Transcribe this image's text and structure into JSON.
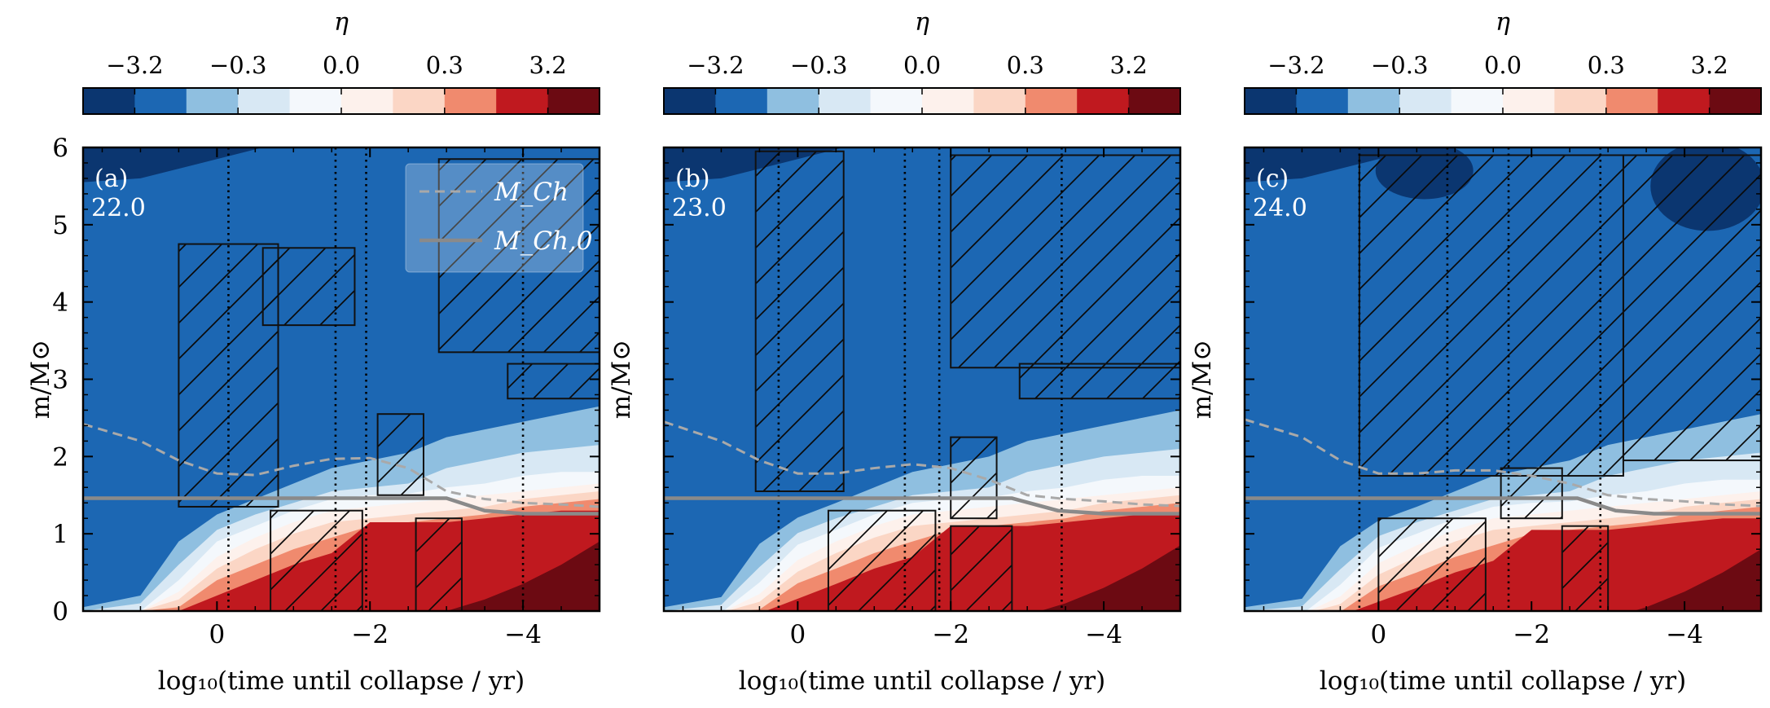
{
  "chart_data": {
    "type": "heatmap",
    "shared": {
      "colorbar": {
        "label": "η",
        "tick_labels": [
          "−3.2",
          "−0.3",
          "0.0",
          "0.3",
          "3.2"
        ],
        "levels": [
          "≤−3.2",
          "−3.2…−1.0",
          "−1.0…−0.3",
          "−0.3…−0.1",
          "−0.1…0.0",
          "0.0…0.1",
          "0.1…0.3",
          "0.3…1.0",
          "1.0…3.2",
          "≥3.2"
        ],
        "colors": [
          "#0b3670",
          "#1c67b3",
          "#8fbfe0",
          "#d8e8f4",
          "#f4f8fc",
          "#fdf1ec",
          "#fbd6c5",
          "#f08a6e",
          "#c0191f",
          "#6c0a12"
        ]
      },
      "xlabel": "log₁₀(time until collapse / yr)",
      "ylabel": "m/M⊙",
      "xlim": [
        1.75,
        -5.0
      ],
      "ylim": [
        0,
        6
      ],
      "xticks": [
        0,
        -2,
        -4
      ],
      "xtick_labels": [
        "0",
        "−2",
        "−4"
      ],
      "yticks": [
        0,
        1,
        2,
        3,
        4,
        5,
        6
      ],
      "ytick_labels": [
        "0",
        "1",
        "2",
        "3",
        "4",
        "5",
        "6"
      ],
      "legend": {
        "location": "upper-right of panel (a)",
        "entries": [
          {
            "label": "M_Ch",
            "style": "dashed",
            "color": "#a9a9a9"
          },
          {
            "label": "M_Ch,0",
            "style": "solid",
            "color": "#8a8a8a"
          }
        ]
      }
    },
    "panels": [
      {
        "panel_label": "(a)",
        "mass_label": "22.0",
        "vlines": [
          -0.15,
          -1.55,
          -1.95,
          -4.0
        ],
        "M_Ch_curve": {
          "x": [
            1.75,
            1.0,
            0.5,
            0.0,
            -0.5,
            -1.0,
            -1.5,
            -2.0,
            -2.5,
            -3.0,
            -3.5,
            -4.0,
            -4.5,
            -5.0
          ],
          "y": [
            2.42,
            2.2,
            1.95,
            1.78,
            1.76,
            1.88,
            1.97,
            1.98,
            1.85,
            1.55,
            1.45,
            1.4,
            1.38,
            1.35
          ]
        },
        "M_Ch0_curve": {
          "x": [
            1.75,
            -3.0,
            -3.5,
            -4.0,
            -5.0
          ],
          "y": [
            1.46,
            1.46,
            1.3,
            1.26,
            1.26
          ]
        },
        "hatched_regions": [
          {
            "x": [
              -0.8,
              0.5
            ],
            "y": [
              1.35,
              4.75
            ]
          },
          {
            "x": [
              -0.6,
              -1.8
            ],
            "y": [
              3.7,
              4.7
            ]
          },
          {
            "x": [
              -2.9,
              -5.0
            ],
            "y": [
              3.35,
              5.85
            ]
          },
          {
            "x": [
              -3.8,
              -5.0
            ],
            "y": [
              2.75,
              3.2
            ]
          },
          {
            "x": [
              -0.7,
              -1.9
            ],
            "y": [
              0.0,
              1.3
            ]
          },
          {
            "x": [
              -2.6,
              -3.2
            ],
            "y": [
              0.0,
              1.2
            ]
          },
          {
            "x": [
              -2.1,
              -2.7
            ],
            "y": [
              1.5,
              2.55
            ]
          }
        ]
      },
      {
        "panel_label": "(b)",
        "mass_label": "23.0",
        "vlines": [
          0.25,
          -1.4,
          -1.85,
          -3.45
        ],
        "M_Ch_curve": {
          "x": [
            1.75,
            1.0,
            0.5,
            0.0,
            -0.5,
            -1.0,
            -1.5,
            -2.0,
            -2.5,
            -3.0,
            -3.5,
            -4.0,
            -4.5,
            -5.0
          ],
          "y": [
            2.45,
            2.2,
            1.95,
            1.78,
            1.78,
            1.85,
            1.9,
            1.85,
            1.7,
            1.5,
            1.45,
            1.42,
            1.38,
            1.36
          ]
        },
        "M_Ch0_curve": {
          "x": [
            1.75,
            -2.8,
            -3.4,
            -4.0,
            -5.0
          ],
          "y": [
            1.46,
            1.46,
            1.3,
            1.26,
            1.26
          ]
        },
        "hatched_regions": [
          {
            "x": [
              -0.6,
              0.55
            ],
            "y": [
              1.55,
              5.95
            ]
          },
          {
            "x": [
              -2.0,
              -5.0
            ],
            "y": [
              3.15,
              5.9
            ]
          },
          {
            "x": [
              -2.9,
              -5.0
            ],
            "y": [
              2.75,
              3.2
            ]
          },
          {
            "x": [
              -0.4,
              -1.8
            ],
            "y": [
              0.0,
              1.3
            ]
          },
          {
            "x": [
              -2.0,
              -2.6
            ],
            "y": [
              1.2,
              2.25
            ]
          },
          {
            "x": [
              -2.0,
              -2.8
            ],
            "y": [
              0.0,
              1.1
            ]
          }
        ]
      },
      {
        "panel_label": "(c)",
        "mass_label": "24.0",
        "vlines": [
          0.25,
          -0.9,
          -1.7,
          -2.9
        ],
        "M_Ch_curve": {
          "x": [
            1.75,
            1.0,
            0.5,
            0.0,
            -0.5,
            -1.0,
            -1.5,
            -2.0,
            -2.5,
            -3.0,
            -3.5,
            -4.0,
            -4.5,
            -5.0
          ],
          "y": [
            2.48,
            2.25,
            1.95,
            1.78,
            1.78,
            1.82,
            1.82,
            1.75,
            1.65,
            1.5,
            1.45,
            1.42,
            1.38,
            1.36
          ]
        },
        "M_Ch0_curve": {
          "x": [
            1.75,
            -2.6,
            -3.1,
            -3.6,
            -5.0
          ],
          "y": [
            1.46,
            1.46,
            1.3,
            1.26,
            1.26
          ]
        },
        "hatched_regions": [
          {
            "x": [
              0.25,
              -3.2
            ],
            "y": [
              1.75,
              5.9
            ]
          },
          {
            "x": [
              -3.2,
              -5.0
            ],
            "y": [
              1.95,
              5.9
            ]
          },
          {
            "x": [
              -1.6,
              -2.4
            ],
            "y": [
              1.2,
              1.85
            ]
          },
          {
            "x": [
              0.0,
              -1.4
            ],
            "y": [
              0.0,
              1.2
            ]
          },
          {
            "x": [
              -2.4,
              -3.0
            ],
            "y": [
              0.0,
              1.1
            ]
          }
        ]
      }
    ]
  }
}
